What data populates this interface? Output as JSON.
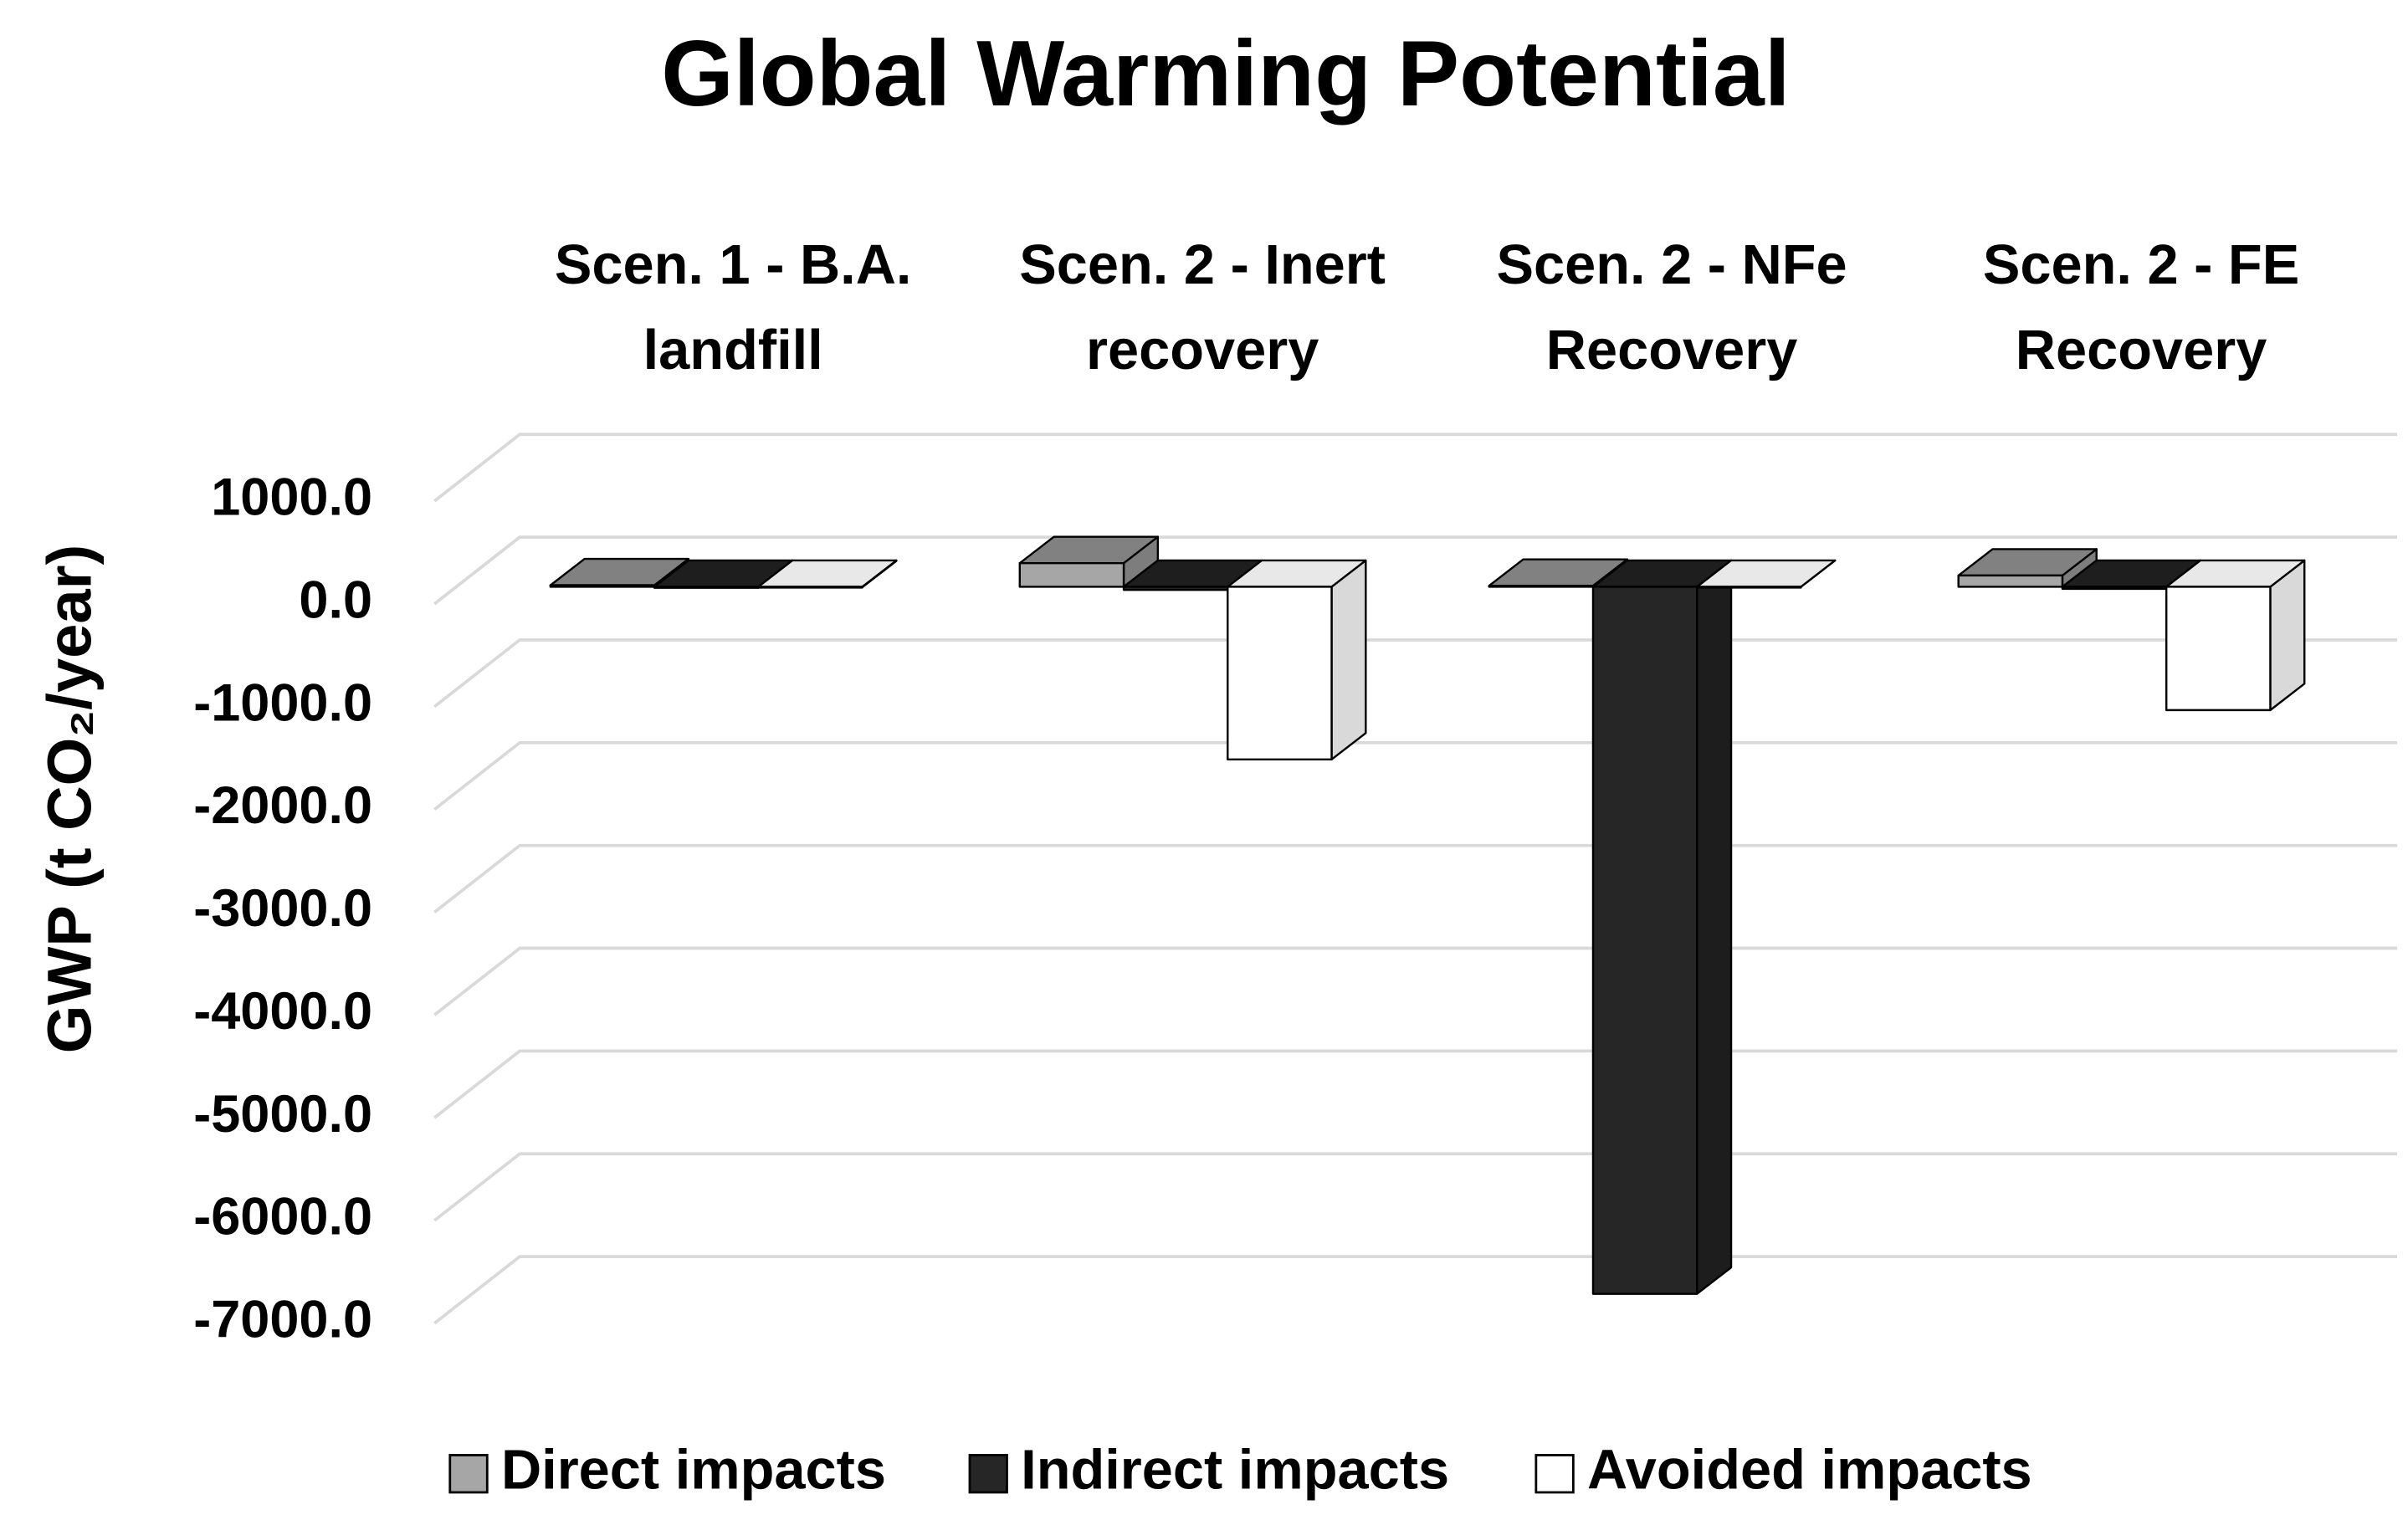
{
  "chart_data": {
    "type": "bar3d",
    "title": "Global Warming Potential",
    "y_label": "GWP (t CO₂/year)",
    "categories": [
      "Scen. 1 - B.A. landfill",
      "Scen. 2 - Inert recovery",
      "Scen. 2 - NFe Recovery",
      "Scen. 2 - FE Recovery"
    ],
    "series": [
      {
        "name": "Direct impacts",
        "color": "#a6a6a6",
        "values": [
          15,
          230,
          10,
          110
        ]
      },
      {
        "name": "Indirect impacts",
        "color": "#262626",
        "values": [
          -10,
          -30,
          -6880,
          -20
        ]
      },
      {
        "name": "Avoided impacts",
        "color": "#ffffff",
        "values": [
          -5,
          -1680,
          0,
          -1200
        ]
      }
    ],
    "ylim": [
      -7000,
      1000
    ],
    "yticks": [
      {
        "value": -7000,
        "label": "-7000.0"
      },
      {
        "value": -6000,
        "label": "-6000.0"
      },
      {
        "value": -5000,
        "label": "-5000.0"
      },
      {
        "value": -4000,
        "label": "-4000.0"
      },
      {
        "value": -3000,
        "label": "-3000.0"
      },
      {
        "value": -2000,
        "label": "-2000.0"
      },
      {
        "value": -1000,
        "label": "-1000.0"
      },
      {
        "value": 0,
        "label": "0.0"
      },
      {
        "value": 1000,
        "label": "1000.0"
      }
    ],
    "grid": true,
    "legend": "bottom"
  }
}
